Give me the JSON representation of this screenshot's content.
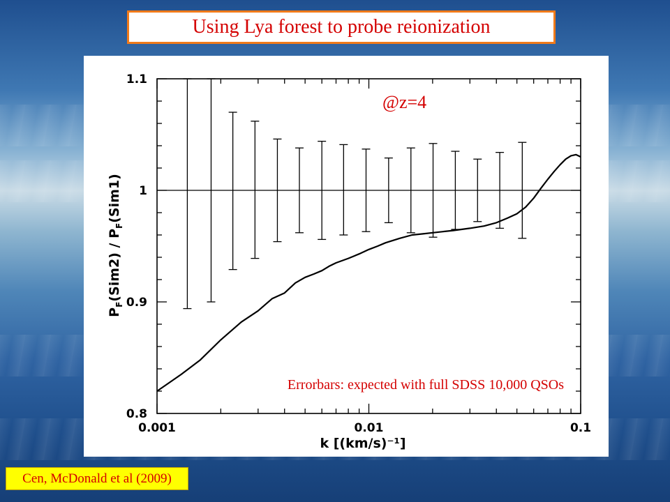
{
  "slide": {
    "title": "Using Lya forest to probe reionization",
    "citation": "Cen, McDonald et al (2009)"
  },
  "chart_data": {
    "type": "line",
    "xscale": "log",
    "xlim": [
      0.001,
      0.1
    ],
    "ylim": [
      0.8,
      1.1
    ],
    "xlabel": "k [(km/s)⁻¹]",
    "ylabel": "P_F(Sim2) / P_F(Sim1)",
    "x_ticks": [
      "0.001",
      "0.01",
      "0.1"
    ],
    "y_ticks": [
      "0.8",
      "0.9",
      "1",
      "1.1"
    ],
    "reference_line": 1,
    "annotations": {
      "redshift": "@z=4",
      "errorbars": "Errorbars: expected with full SDSS 10,000 QSOs"
    },
    "series": [
      {
        "points": [
          [
            0.001,
            0.82
          ],
          [
            0.0013,
            0.835
          ],
          [
            0.0016,
            0.848
          ],
          [
            0.002,
            0.866
          ],
          [
            0.0025,
            0.882
          ],
          [
            0.003,
            0.892
          ],
          [
            0.0035,
            0.903
          ],
          [
            0.004,
            0.908
          ],
          [
            0.0045,
            0.917
          ],
          [
            0.005,
            0.922
          ],
          [
            0.0055,
            0.925
          ],
          [
            0.006,
            0.928
          ],
          [
            0.0065,
            0.932
          ],
          [
            0.007,
            0.935
          ],
          [
            0.008,
            0.939
          ],
          [
            0.009,
            0.943
          ],
          [
            0.01,
            0.947
          ],
          [
            0.011,
            0.95
          ],
          [
            0.012,
            0.953
          ],
          [
            0.014,
            0.957
          ],
          [
            0.016,
            0.96
          ],
          [
            0.018,
            0.961
          ],
          [
            0.02,
            0.962
          ],
          [
            0.025,
            0.964
          ],
          [
            0.03,
            0.966
          ],
          [
            0.035,
            0.968
          ],
          [
            0.04,
            0.971
          ],
          [
            0.045,
            0.975
          ],
          [
            0.05,
            0.979
          ],
          [
            0.055,
            0.985
          ],
          [
            0.06,
            0.993
          ],
          [
            0.065,
            1.002
          ],
          [
            0.07,
            1.01
          ],
          [
            0.075,
            1.017
          ],
          [
            0.08,
            1.023
          ],
          [
            0.085,
            1.028
          ],
          [
            0.09,
            1.031
          ],
          [
            0.095,
            1.032
          ],
          [
            0.1,
            1.03
          ]
        ]
      }
    ],
    "errorbars": [
      {
        "x": 0.00139,
        "low": 0.894,
        "high": 1.1
      },
      {
        "x": 0.0018,
        "low": 0.9,
        "high": 1.1
      },
      {
        "x": 0.00228,
        "low": 0.929,
        "high": 1.07
      },
      {
        "x": 0.0029,
        "low": 0.939,
        "high": 1.062
      },
      {
        "x": 0.0037,
        "low": 0.954,
        "high": 1.046
      },
      {
        "x": 0.0047,
        "low": 0.962,
        "high": 1.038
      },
      {
        "x": 0.006,
        "low": 0.956,
        "high": 1.044
      },
      {
        "x": 0.0076,
        "low": 0.96,
        "high": 1.041
      },
      {
        "x": 0.0097,
        "low": 0.963,
        "high": 1.037
      },
      {
        "x": 0.0124,
        "low": 0.971,
        "high": 1.029
      },
      {
        "x": 0.0158,
        "low": 0.962,
        "high": 1.038
      },
      {
        "x": 0.0201,
        "low": 0.958,
        "high": 1.042
      },
      {
        "x": 0.0256,
        "low": 0.965,
        "high": 1.035
      },
      {
        "x": 0.0326,
        "low": 0.972,
        "high": 1.028
      },
      {
        "x": 0.0415,
        "low": 0.966,
        "high": 1.034
      },
      {
        "x": 0.053,
        "low": 0.957,
        "high": 1.043
      }
    ]
  }
}
